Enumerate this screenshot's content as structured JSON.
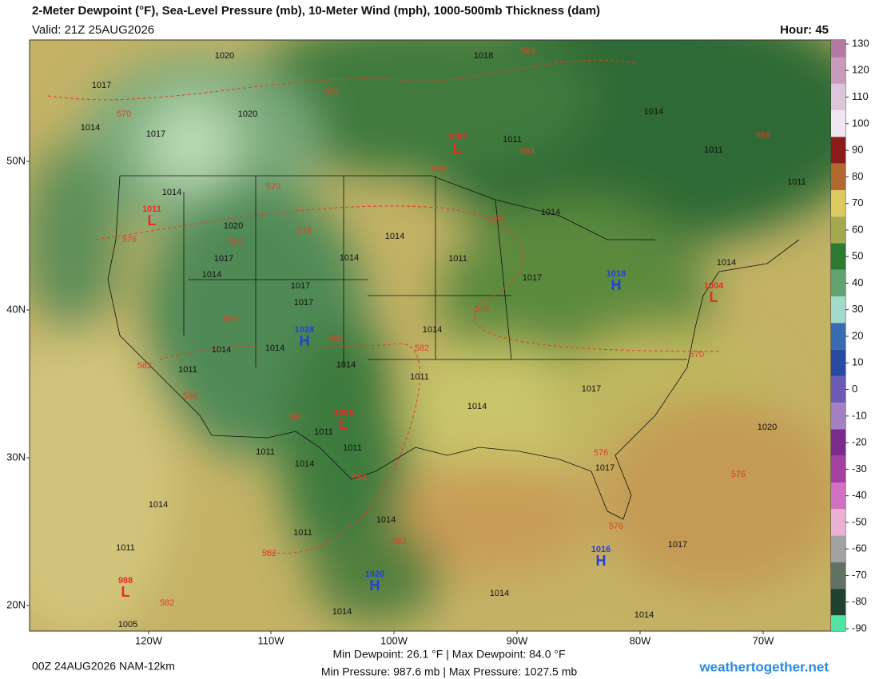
{
  "header": {
    "title": "2-Meter Dewpoint (°F), Sea-Level Pressure (mb), 10-Meter Wind (mph), 1000-500mb Thickness (dam)",
    "valid": "Valid: 21Z 25AUG2026",
    "hour": "Hour: 45"
  },
  "colorbar": {
    "ticks": [
      130,
      120,
      110,
      100,
      90,
      80,
      70,
      60,
      50,
      40,
      30,
      20,
      10,
      0,
      -10,
      -20,
      -30,
      -40,
      -50,
      -60,
      -70,
      -80,
      -90
    ],
    "colors": [
      "#b27aa3",
      "#c99bbb",
      "#ddc6dc",
      "#efe6ef",
      "#8c1c1c",
      "#b2692f",
      "#d9c95f",
      "#a3a94f",
      "#2f7a31",
      "#62a271",
      "#a3dac9",
      "#3a6ab2",
      "#2a4aa2",
      "#6b5bb2",
      "#a381c1",
      "#7b2b8b",
      "#a341a2",
      "#d171c2",
      "#e9b1d2",
      "#a2a2a2",
      "#627262",
      "#214131",
      "#52e2a2"
    ]
  },
  "latitudes": [
    "50N",
    "40N",
    "30N",
    "20N"
  ],
  "longitudes": [
    "120W",
    "110W",
    "100W",
    "90W",
    "80W",
    "70W"
  ],
  "isobar_labels": [
    "1020",
    "1017",
    "1014",
    "1017",
    "1020",
    "1014",
    "1020",
    "1017",
    "1014",
    "1017",
    "1017",
    "1014",
    "1014",
    "1011",
    "1017",
    "1014",
    "1011",
    "1014",
    "1011",
    "1011",
    "1014",
    "1014",
    "1011",
    "1014",
    "1014",
    "1014",
    "1011",
    "1011",
    "1011",
    "1014",
    "1017",
    "1011",
    "1014",
    "1014",
    "1011",
    "1014",
    "1011",
    "1005",
    "1014",
    "1014",
    "1017",
    "1017",
    "1014",
    "1020",
    "1018"
  ],
  "thickness_labels": [
    "564",
    "564",
    "570",
    "564",
    "564",
    "570",
    "576",
    "576",
    "582",
    "576",
    "576",
    "582",
    "588",
    "588",
    "582",
    "588",
    "594",
    "588",
    "582",
    "582",
    "582",
    "576",
    "576",
    "576",
    "570",
    "558"
  ],
  "lows": [
    {
      "pressure": "1007",
      "symbol": "L"
    },
    {
      "pressure": "1011",
      "symbol": "L"
    },
    {
      "pressure": "1009",
      "symbol": "L"
    },
    {
      "pressure": "1004",
      "symbol": "L"
    },
    {
      "pressure": "988",
      "symbol": "L"
    }
  ],
  "highs": [
    {
      "pressure": "1028",
      "symbol": "H"
    },
    {
      "pressure": "1018",
      "symbol": "H"
    },
    {
      "pressure": "1020",
      "symbol": "H"
    },
    {
      "pressure": "1016",
      "symbol": "H"
    }
  ],
  "footer": {
    "run": "00Z 24AUG2026 NAM-12km",
    "dewpoint": "Min Dewpoint: 26.1 °F | Max Dewpoint: 84.0 °F",
    "pressure": "Min Pressure: 987.6 mb | Max Pressure: 1027.5 mb",
    "site": "weathertogether.net"
  }
}
